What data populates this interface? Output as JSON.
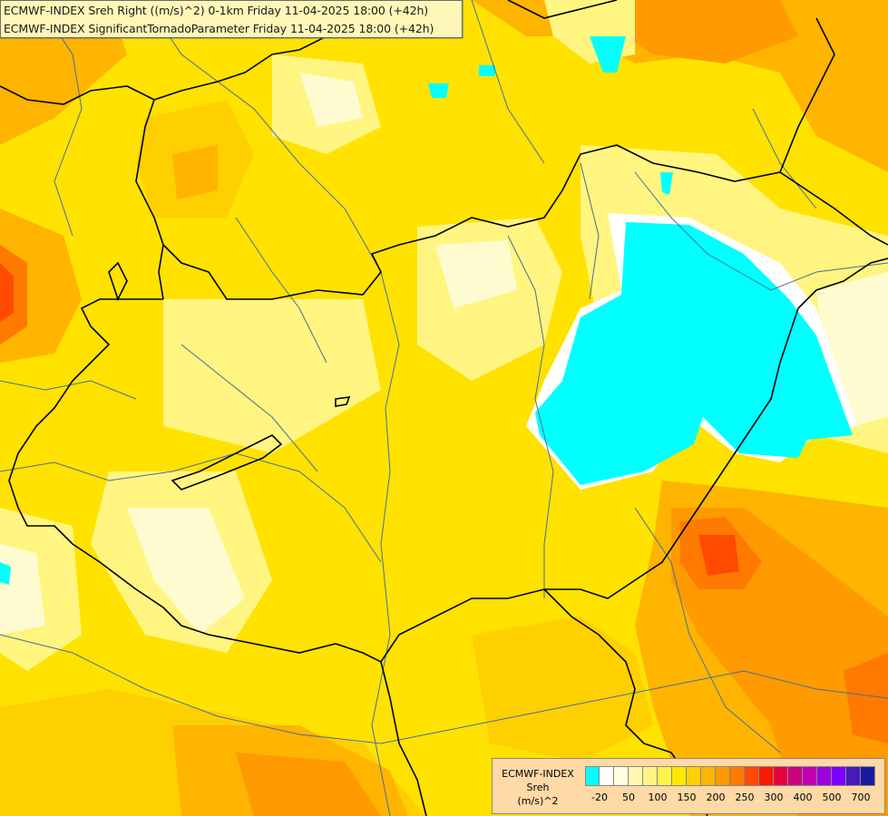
{
  "header": {
    "line1": "ECMWF-INDEX Sreh Right ((m/s)^2) 0-1km Friday 11-04-2025 18:00 (+42h)",
    "line2": "ECMWF-INDEX SignificantTornadoParameter Friday 11-04-2025 18:00 (+42h)"
  },
  "legend": {
    "title1": "ECMWF-INDEX",
    "title2": "Sreh",
    "title3": "(m/s)^2",
    "colors": [
      "#00ffff",
      "#ffffff",
      "#ffffe0",
      "#fff8b0",
      "#fff580",
      "#fff44a",
      "#ffe800",
      "#ffd000",
      "#ffb400",
      "#ff9a00",
      "#ff7a00",
      "#ff4a00",
      "#ff1800",
      "#e8003c",
      "#cc007a",
      "#c000b0",
      "#9a00e0",
      "#7a00ff",
      "#4a1ab8",
      "#1a1aa0"
    ],
    "ticks": [
      "-20",
      "50",
      "100",
      "150",
      "200",
      "250",
      "300",
      "400",
      "500",
      "700"
    ],
    "tick_after_swatch": [
      1,
      3,
      5,
      7,
      9,
      11,
      13,
      15,
      17,
      19
    ]
  },
  "map": {
    "background_color": "#ffe200",
    "cyan_color": "#00ffff",
    "border_color": "#000000",
    "river_color": "#4a6d9a"
  }
}
